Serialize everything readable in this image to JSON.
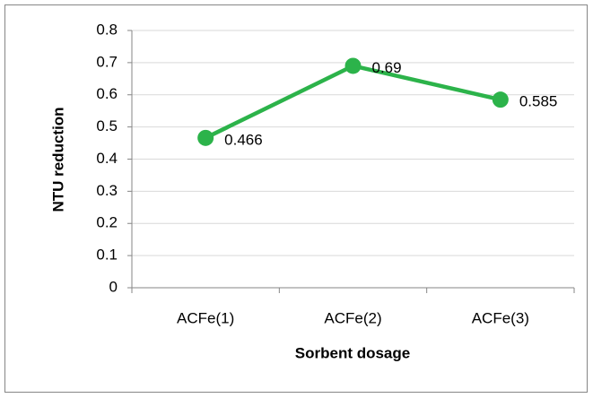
{
  "chart_data": {
    "type": "line",
    "categories": [
      "ACFe(1)",
      "ACFe(2)",
      "ACFe(3)"
    ],
    "series": [
      {
        "name": "NTU reduction",
        "color": "#2cb34a",
        "values": [
          0.466,
          0.69,
          0.585
        ]
      }
    ],
    "x_label": "Sorbent dosage",
    "y_label": "NTU reduction",
    "ylim": [
      0,
      0.8
    ],
    "yticks": [
      0,
      0.1,
      0.2,
      0.3,
      0.4,
      0.5,
      0.6,
      0.7,
      0.8
    ],
    "grid": true
  }
}
